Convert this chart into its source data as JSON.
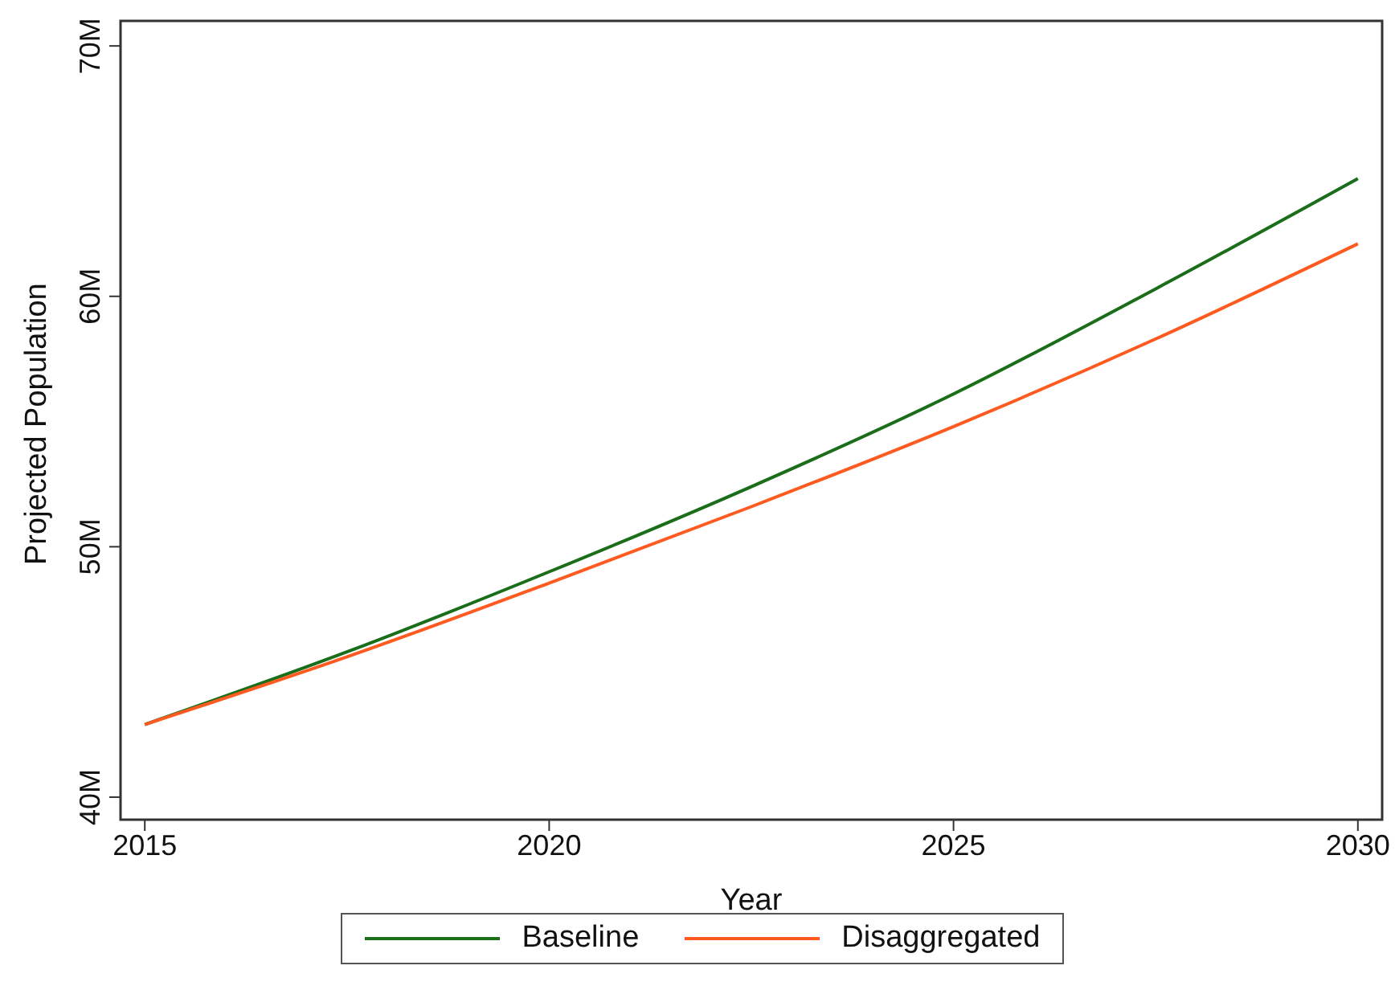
{
  "chart_data": {
    "type": "line",
    "xlabel": "Year",
    "ylabel": "Projected Population",
    "x": [
      2015,
      2017.5,
      2020,
      2022.5,
      2025,
      2027.5,
      2030
    ],
    "series": [
      {
        "name": "Baseline",
        "color": "#1a6e1a",
        "values": [
          42.9,
          45.8,
          49.0,
          52.4,
          56.1,
          60.3,
          64.7
        ]
      },
      {
        "name": "Disaggregated",
        "color": "#ff5a1f",
        "values": [
          42.9,
          45.6,
          48.55,
          51.6,
          54.8,
          58.3,
          62.1
        ]
      }
    ],
    "xlim": [
      2014.7,
      2030.3
    ],
    "xticks": [
      2015,
      2020,
      2025,
      2030
    ],
    "ylim": [
      39.1,
      71
    ],
    "yticks": [
      {
        "value": 40,
        "label": "40M"
      },
      {
        "value": 50,
        "label": "50M"
      },
      {
        "value": 60,
        "label": "60M"
      },
      {
        "value": 70,
        "label": "70M"
      }
    ],
    "grid": false,
    "legend": "bottom",
    "marker": "none",
    "line_style": "solid"
  }
}
